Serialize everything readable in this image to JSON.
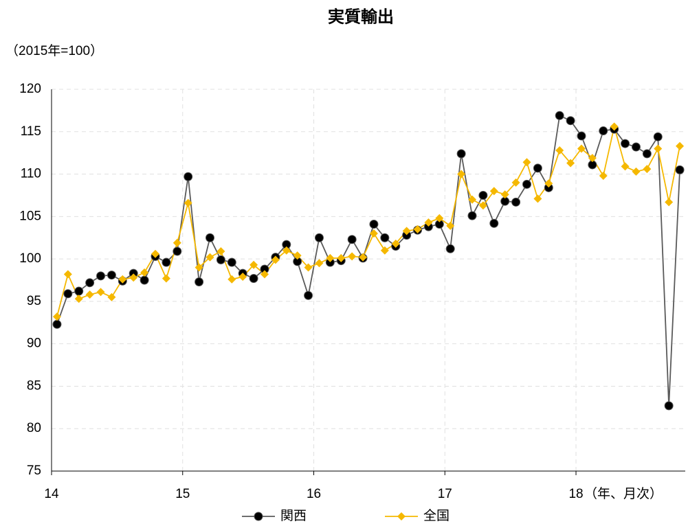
{
  "chart_data": {
    "type": "line",
    "title": "実質輸出",
    "y_label": "（2015年=100）",
    "x_label": "（年、月次）",
    "categories": [
      "14",
      null,
      null,
      null,
      null,
      null,
      null,
      null,
      null,
      null,
      null,
      null,
      "15",
      null,
      null,
      null,
      null,
      null,
      null,
      null,
      null,
      null,
      null,
      null,
      "16",
      null,
      null,
      null,
      null,
      null,
      null,
      null,
      null,
      null,
      null,
      null,
      "17",
      null,
      null,
      null,
      null,
      null,
      null,
      null,
      null,
      null,
      null,
      null,
      "18",
      null,
      null,
      null,
      null,
      null,
      null,
      null,
      null,
      null
    ],
    "series": [
      {
        "name": "関西",
        "color": "#000000",
        "line_color": "#595959",
        "values": [
          92.3,
          95.9,
          96.2,
          97.2,
          98.0,
          98.1,
          97.4,
          98.3,
          97.5,
          100.3,
          99.6,
          100.9,
          109.7,
          97.3,
          102.5,
          99.9,
          99.6,
          98.3,
          97.7,
          98.8,
          100.2,
          101.7,
          99.7,
          95.7,
          102.5,
          99.6,
          99.8,
          102.3,
          100.1,
          104.1,
          102.5,
          101.5,
          102.8,
          103.4,
          103.8,
          104.1,
          101.2,
          112.4,
          105.1,
          107.5,
          104.2,
          106.8,
          106.7,
          108.8,
          110.7,
          108.4,
          116.9,
          116.3,
          114.5,
          111.1,
          115.1,
          115.3,
          113.6,
          113.2,
          112.4,
          114.4,
          82.7,
          110.5
        ]
      },
      {
        "name": "全国",
        "color": "#f5b800",
        "line_color": "#f5b800",
        "values": [
          93.2,
          98.2,
          95.3,
          95.8,
          96.1,
          95.5,
          97.6,
          97.8,
          98.4,
          100.6,
          97.7,
          101.9,
          106.6,
          99.0,
          100.2,
          100.9,
          97.6,
          97.9,
          99.3,
          98.2,
          99.9,
          101.0,
          100.4,
          99.0,
          99.5,
          100.1,
          100.1,
          100.3,
          100.2,
          103.0,
          101.0,
          101.8,
          103.3,
          103.5,
          104.3,
          104.8,
          103.9,
          110.0,
          107.0,
          106.3,
          108.0,
          107.6,
          109.0,
          111.4,
          107.1,
          108.9,
          112.8,
          111.3,
          113.0,
          111.9,
          109.8,
          115.6,
          110.9,
          110.3,
          110.6,
          113.0,
          106.7,
          113.3
        ]
      }
    ],
    "ylim": [
      75,
      120
    ],
    "yticks": [
      75,
      80,
      85,
      90,
      95,
      100,
      105,
      110,
      115,
      120
    ],
    "grid": true
  }
}
